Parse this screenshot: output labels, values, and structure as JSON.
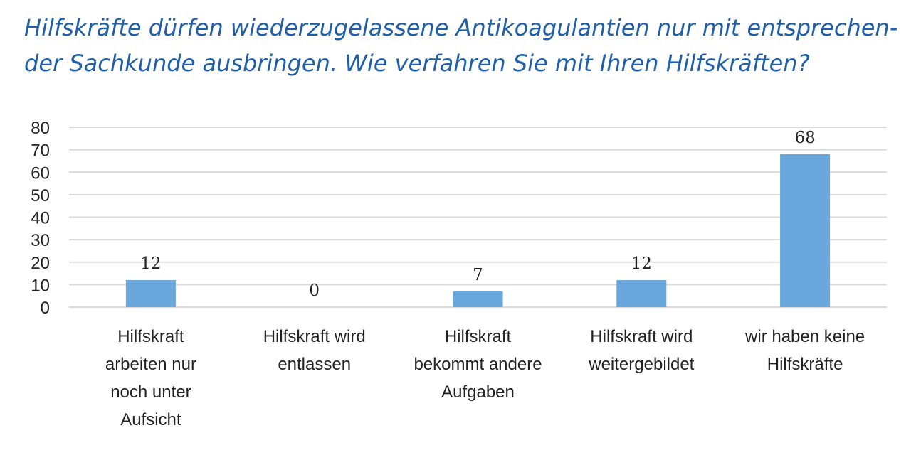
{
  "title_lines": [
    "Hilfskräfte dürfen wiederzugelassene Antikoagulantien nur mit entsprechen-",
    "der Sachkunde ausbringen. Wie verfahren Sie mit Ihren Hilfskräften?"
  ],
  "chart_data": {
    "type": "bar",
    "categories": [
      [
        "Hilfskraft",
        "arbeiten nur",
        "noch unter",
        "Aufsicht"
      ],
      [
        "Hilfskraft wird",
        "entlassen"
      ],
      [
        "Hilfskraft",
        "bekommt andere",
        "Aufgaben"
      ],
      [
        "Hilfskraft wird",
        "weitergebildet"
      ],
      [
        "wir haben keine",
        "Hilfskräfte"
      ]
    ],
    "values": [
      12,
      0,
      7,
      12,
      68
    ],
    "data_labels": [
      "12",
      "0",
      "7",
      "12",
      "68"
    ],
    "ylim": [
      0,
      80
    ],
    "yticks": [
      0,
      10,
      20,
      30,
      40,
      50,
      60,
      70,
      80
    ],
    "grid": true,
    "legend": "none",
    "bar_color": "#6aa7dc",
    "grid_color": "#d9d9d9"
  }
}
